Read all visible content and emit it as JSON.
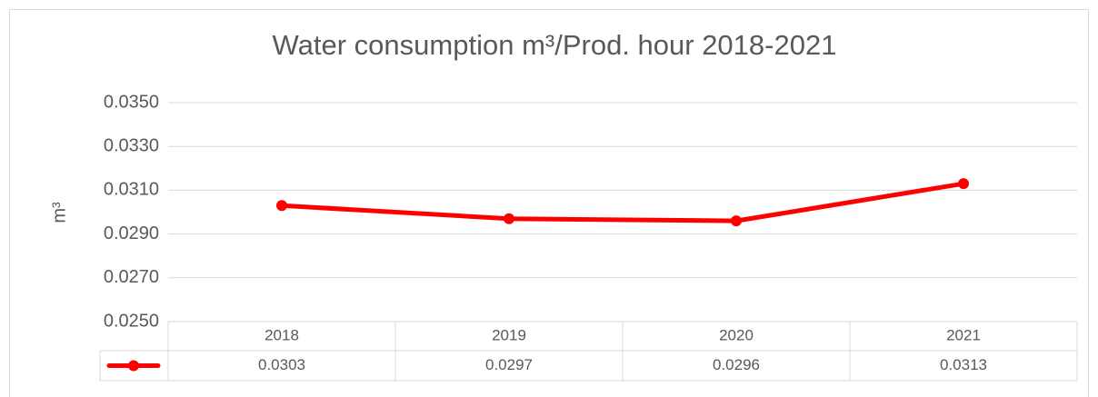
{
  "chart_data": {
    "type": "line",
    "title": "Water consumption m³/Prod. hour 2018-2021",
    "y_label": "m³",
    "categories": [
      "2018",
      "2019",
      "2020",
      "2021"
    ],
    "values": [
      0.0303,
      0.0297,
      0.0296,
      0.0313
    ],
    "color": "#ff0000",
    "ylim": [
      0.025,
      0.035
    ],
    "yticks": [
      {
        "value": 0.025,
        "label": "0.0250"
      },
      {
        "value": 0.027,
        "label": "0.0270"
      },
      {
        "value": 0.029,
        "label": "0.0290"
      },
      {
        "value": 0.031,
        "label": "0.0310"
      },
      {
        "value": 0.033,
        "label": "0.0330"
      },
      {
        "value": 0.035,
        "label": "0.0350"
      }
    ],
    "grid": true
  }
}
